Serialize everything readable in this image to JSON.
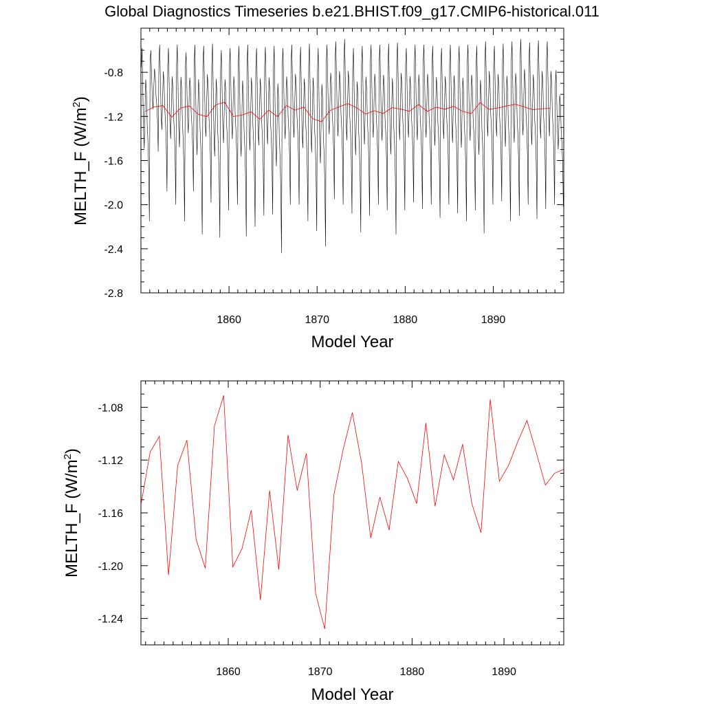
{
  "title": "Global Diagnostics Timeseries b.e21.BHIST.f09_g17.CMIP6-historical.011",
  "colors": {
    "monthly": "#000000",
    "annual": "#ff0000"
  },
  "chart_data": [
    {
      "type": "line",
      "panel": "top",
      "xlabel": "Model Year",
      "ylabel": "MELTH_F (W/m",
      "ylabel_sup": "2",
      "ylabel_tail": ")",
      "xlim": [
        1850,
        1898
      ],
      "ylim": [
        -2.8,
        -0.4
      ],
      "xticks": [
        1860,
        1870,
        1880,
        1890
      ],
      "xtick_labels": [
        "1860",
        "1870",
        "1880",
        "1890"
      ],
      "yticks": [
        -2.8,
        -2.4,
        -2.0,
        -1.6,
        -1.2,
        -0.8
      ],
      "ytick_labels": [
        "-2.8",
        "-2.4",
        "-2.0",
        "-1.6",
        "-1.2",
        "-0.8"
      ],
      "series": [
        {
          "style": "monthly",
          "color": "#000000",
          "years_start": 1850,
          "years_count": 48,
          "monthly_pattern": [
            -0.78,
            -0.62,
            -0.95,
            -1.3,
            -1.45,
            -1.15,
            -0.88,
            -0.98,
            -1.25,
            -1.38,
            -1.6,
            -2.05
          ],
          "annual_min": [
            -2.15,
            -1.52,
            -1.88,
            -2.0,
            -2.15,
            -1.88,
            -2.27,
            -1.98,
            -2.3,
            -2.05,
            -2.0,
            -2.29,
            -2.2,
            -2.1,
            -2.09,
            -2.44,
            -2.0,
            -2.0,
            -2.15,
            -2.24,
            -2.38,
            -1.95,
            -2.0,
            -2.08,
            -2.25,
            -2.1,
            -2.0,
            -2.05,
            -2.27,
            -2.05,
            -1.98,
            -2.04,
            -2.0,
            -2.12,
            -2.0,
            -2.08,
            -2.15,
            -2.05,
            -2.26,
            -2.0,
            -1.97,
            -2.15,
            -2.1,
            -2.0,
            -2.13,
            -2.04,
            -2.0,
            -2.02
          ],
          "annual_max": [
            -0.58,
            -0.6,
            -0.55,
            -0.58,
            -0.55,
            -0.62,
            -0.55,
            -0.56,
            -0.54,
            -0.6,
            -0.58,
            -0.56,
            -0.55,
            -0.58,
            -0.57,
            -0.56,
            -0.58,
            -0.55,
            -0.57,
            -0.54,
            -0.58,
            -0.55,
            -0.52,
            -0.5,
            -0.58,
            -0.56,
            -0.55,
            -0.55,
            -0.54,
            -0.53,
            -0.58,
            -0.55,
            -0.55,
            -0.56,
            -0.58,
            -0.55,
            -0.56,
            -0.55,
            -0.56,
            -0.52,
            -0.56,
            -0.54,
            -0.52,
            -0.5,
            -0.53,
            -0.51,
            -0.52,
            -0.78
          ]
        },
        {
          "style": "annual",
          "color": "#ff0000",
          "x": [
            1850.5,
            1851.5,
            1852.5,
            1853.5,
            1854.5,
            1855.5,
            1856.5,
            1857.5,
            1858.5,
            1859.5,
            1860.5,
            1861.5,
            1862.5,
            1863.5,
            1864.5,
            1865.5,
            1866.5,
            1867.5,
            1868.5,
            1869.5,
            1870.5,
            1871.5,
            1872.5,
            1873.5,
            1874.5,
            1875.5,
            1876.5,
            1877.5,
            1878.5,
            1879.5,
            1880.5,
            1881.5,
            1882.5,
            1883.5,
            1884.5,
            1885.5,
            1886.5,
            1887.5,
            1888.5,
            1889.5,
            1890.5,
            1891.5,
            1892.5,
            1893.5,
            1894.5,
            1895.5,
            1896.5
          ],
          "y": [
            -1.154,
            -1.114,
            -1.102,
            -1.207,
            -1.124,
            -1.105,
            -1.18,
            -1.202,
            -1.094,
            -1.071,
            -1.201,
            -1.187,
            -1.158,
            -1.226,
            -1.143,
            -1.203,
            -1.101,
            -1.143,
            -1.115,
            -1.221,
            -1.248,
            -1.146,
            -1.112,
            -1.084,
            -1.122,
            -1.179,
            -1.148,
            -1.173,
            -1.121,
            -1.134,
            -1.153,
            -1.092,
            -1.155,
            -1.116,
            -1.135,
            -1.108,
            -1.153,
            -1.175,
            -1.074,
            -1.136,
            -1.124,
            -1.106,
            -1.09,
            -1.114,
            -1.139,
            -1.13,
            -1.127
          ]
        }
      ]
    },
    {
      "type": "line",
      "panel": "bottom",
      "xlabel": "Model Year",
      "ylabel": "MELTH_F (W/m",
      "ylabel_sup": "2",
      "ylabel_tail": ")",
      "xlim": [
        1850.5,
        1896.5
      ],
      "ylim": [
        -1.26,
        -1.06
      ],
      "xticks": [
        1860,
        1870,
        1880,
        1890
      ],
      "xtick_labels": [
        "1860",
        "1870",
        "1880",
        "1890"
      ],
      "yticks": [
        -1.24,
        -1.2,
        -1.16,
        -1.12,
        -1.08
      ],
      "ytick_labels": [
        "-1.24",
        "-1.20",
        "-1.16",
        "-1.12",
        "-1.08"
      ],
      "series": [
        {
          "style": "annual",
          "color": "#ff0000",
          "x": [
            1850.5,
            1851.5,
            1852.5,
            1853.5,
            1854.5,
            1855.5,
            1856.5,
            1857.5,
            1858.5,
            1859.5,
            1860.5,
            1861.5,
            1862.5,
            1863.5,
            1864.5,
            1865.5,
            1866.5,
            1867.5,
            1868.5,
            1869.5,
            1870.5,
            1871.5,
            1872.5,
            1873.5,
            1874.5,
            1875.5,
            1876.5,
            1877.5,
            1878.5,
            1879.5,
            1880.5,
            1881.5,
            1882.5,
            1883.5,
            1884.5,
            1885.5,
            1886.5,
            1887.5,
            1888.5,
            1889.5,
            1890.5,
            1891.5,
            1892.5,
            1893.5,
            1894.5,
            1895.5,
            1896.5
          ],
          "y": [
            -1.154,
            -1.114,
            -1.102,
            -1.207,
            -1.124,
            -1.105,
            -1.18,
            -1.202,
            -1.094,
            -1.071,
            -1.201,
            -1.187,
            -1.158,
            -1.226,
            -1.143,
            -1.203,
            -1.101,
            -1.143,
            -1.115,
            -1.221,
            -1.248,
            -1.146,
            -1.112,
            -1.084,
            -1.122,
            -1.179,
            -1.148,
            -1.173,
            -1.121,
            -1.134,
            -1.153,
            -1.092,
            -1.155,
            -1.116,
            -1.135,
            -1.108,
            -1.153,
            -1.175,
            -1.074,
            -1.136,
            -1.124,
            -1.106,
            -1.09,
            -1.114,
            -1.139,
            -1.13,
            -1.127
          ]
        }
      ]
    }
  ]
}
